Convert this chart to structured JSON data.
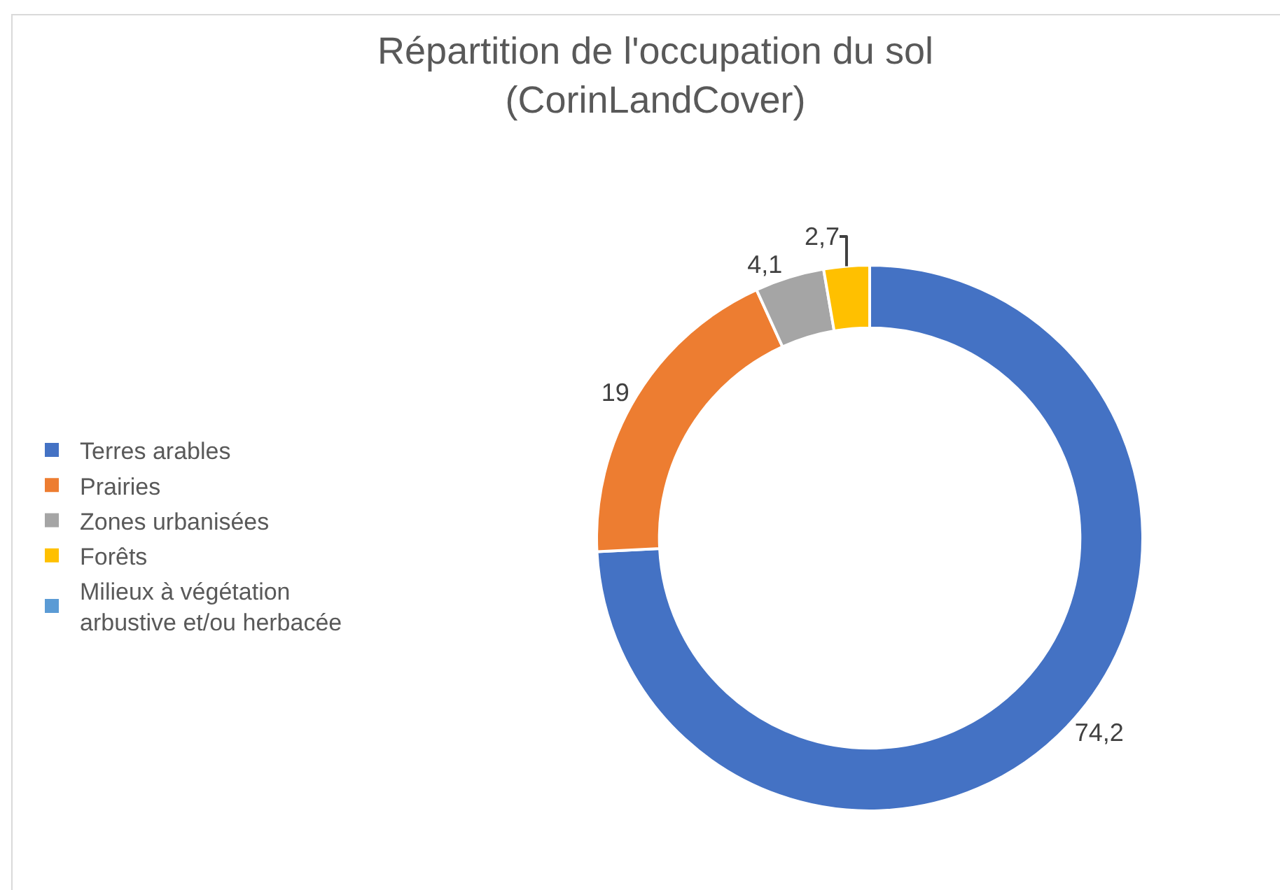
{
  "chart_data": {
    "type": "donut",
    "title": "Répartition de l'occupation du sol (CorinLandCover)",
    "categories": [
      "Terres arables",
      "Prairies",
      "Zones urbanisées",
      "Forêts",
      "Milieux à végétation arbustive et/ou herbacée"
    ],
    "values": [
      74.2,
      19,
      4.1,
      2.7,
      0
    ],
    "colors": [
      "#4472c4",
      "#ed7d31",
      "#a5a5a5",
      "#ffc000",
      "#5b9bd5"
    ],
    "value_labels": [
      "74,2",
      "19",
      "4,1",
      "2,7",
      null
    ],
    "legend": "left"
  }
}
